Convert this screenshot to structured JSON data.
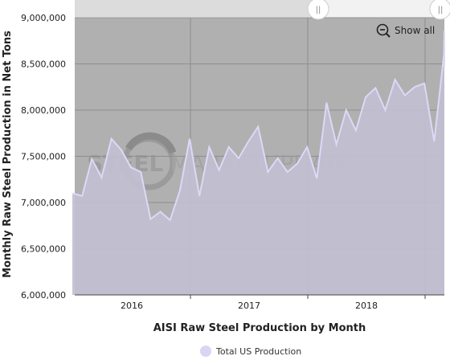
{
  "chart_data": {
    "type": "area",
    "title": "",
    "xlabel": "AISI Raw Steel Production by Month",
    "ylabel": "Monthly Raw Steel Production in Net Tons",
    "ylim": [
      6000000,
      9000000
    ],
    "y_ticks": [
      6000000,
      6500000,
      7000000,
      7500000,
      8000000,
      8500000,
      9000000
    ],
    "y_tick_labels": [
      "6,000,000",
      "6,500,000",
      "7,000,000",
      "7,500,000",
      "8,000,000",
      "8,500,000",
      "9,000,000"
    ],
    "x_year_labels": [
      "2016",
      "2017",
      "2018"
    ],
    "grid": true,
    "legend_position": "bottom-center",
    "series": [
      {
        "name": "Total US Production",
        "color": "#d8d5f5",
        "x": [
          "2015-08",
          "2015-09",
          "2015-10",
          "2015-11",
          "2015-12",
          "2016-01",
          "2016-02",
          "2016-03",
          "2016-04",
          "2016-05",
          "2016-06",
          "2016-07",
          "2016-08",
          "2016-09",
          "2016-10",
          "2016-11",
          "2016-12",
          "2017-01",
          "2017-02",
          "2017-03",
          "2017-04",
          "2017-05",
          "2017-06",
          "2017-07",
          "2017-08",
          "2017-09",
          "2017-10",
          "2017-11",
          "2017-12",
          "2018-01",
          "2018-02",
          "2018-03",
          "2018-04",
          "2018-05",
          "2018-06",
          "2018-07",
          "2018-08",
          "2018-09",
          "2018-10",
          "2018-11",
          "2018-12"
        ],
        "values": [
          7100000,
          7070000,
          7470000,
          7270000,
          7690000,
          7570000,
          7380000,
          7330000,
          6820000,
          6900000,
          6810000,
          7130000,
          7690000,
          7070000,
          7600000,
          7350000,
          7600000,
          7480000,
          7660000,
          7820000,
          7330000,
          7480000,
          7330000,
          7420000,
          7600000,
          7260000,
          8080000,
          7630000,
          8000000,
          7780000,
          8140000,
          8240000,
          8000000,
          8330000,
          8160000,
          8250000,
          8290000,
          7660000,
          8600000,
          8860000,
          8480000
        ]
      }
    ]
  },
  "navigator": {
    "handle_glyph": "||"
  },
  "toolbar": {
    "show_all_label": "Show all"
  },
  "watermark": {
    "brand": "STEEL MARKET UPDATE"
  },
  "colors": {
    "plot_background": "#b0b0b0",
    "series_fill": "#c1bfd1",
    "series_line": "#dcd9f7",
    "grid": "#8e8e8e"
  }
}
